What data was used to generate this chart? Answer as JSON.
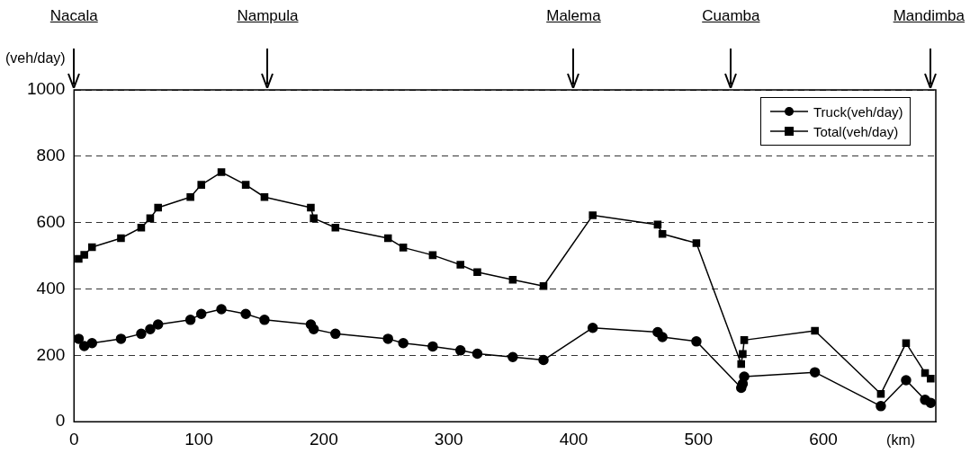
{
  "chart_data": {
    "type": "line",
    "x": [
      3.7,
      8.2,
      14.4,
      37.6,
      53.8,
      61,
      67.3,
      93.2,
      101.9,
      118,
      137.5,
      152.5,
      189.6,
      191.9,
      209.3,
      251.4,
      263.6,
      287.2,
      309.4,
      322.9,
      351.3,
      375.9,
      415.3,
      467.3,
      471.1,
      498.3,
      534.2,
      535.4,
      536.6,
      593.2,
      646,
      666.2,
      681.4,
      685.9
    ],
    "series": [
      {
        "name": "Truck(veh/day)",
        "color": "#000000",
        "marker": "circle",
        "values": [
          250,
          228,
          237,
          250,
          265,
          279,
          293,
          307,
          325,
          339,
          325,
          307,
          293,
          279,
          265,
          250,
          237,
          227,
          215,
          205,
          195,
          186,
          283,
          270,
          255,
          242,
          102,
          114,
          136,
          149,
          47,
          125,
          66,
          57
        ]
      },
      {
        "name": "Total(veh/day)",
        "color": "#000000",
        "marker": "square",
        "values": [
          491,
          503,
          526,
          553,
          585,
          613,
          645,
          677,
          714,
          752,
          714,
          677,
          645,
          613,
          585,
          553,
          525,
          502,
          473,
          451,
          428,
          409,
          622,
          594,
          566,
          538,
          174,
          204,
          246,
          274,
          84,
          237,
          147,
          130
        ]
      }
    ],
    "xlabel": "(km)",
    "ylabel": "(veh/day)",
    "xlim": [
      0,
      690
    ],
    "xticks": [
      0,
      100,
      200,
      300,
      400,
      500,
      600
    ],
    "ylim": [
      0,
      1000
    ],
    "yticks": [
      0,
      200,
      400,
      600,
      800,
      1000
    ],
    "grid": "y",
    "legend": "top right",
    "line_style": "solid",
    "annotations": [
      "Nacala",
      "Nampula",
      "Malema",
      "Cuamba",
      "Mandimba"
    ]
  }
}
